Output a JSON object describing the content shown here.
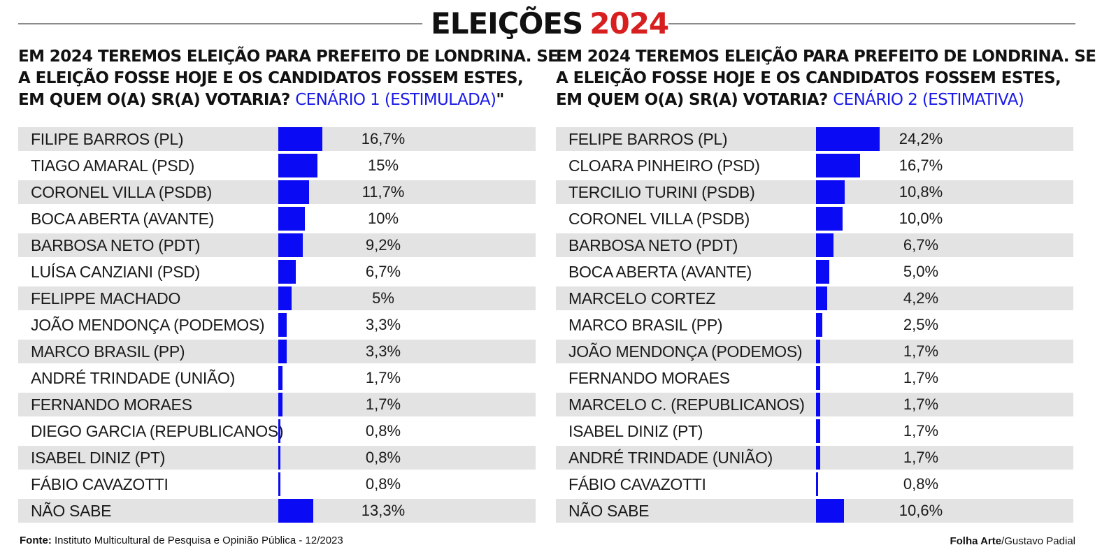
{
  "header": {
    "title_part1": "ELEIÇÕES",
    "title_part2": "2024"
  },
  "colors": {
    "bar": "#0a0af5",
    "accent_red": "#d81f1f",
    "scenario_text": "#1a1ae6",
    "shaded_row": "#e3e3e3"
  },
  "panels": [
    {
      "question_lines": [
        "EM 2024 TEREMOS ELEIÇÃO PARA PREFEITO DE LONDRINA. SE",
        "A ELEIÇÃO FOSSE HOJE E OS CANDIDATOS FOSSEM ESTES,",
        "EM QUEM O(A) SR(A) VOTARIA?"
      ],
      "scenario": "CENÁRIO 1 (ESTIMULADA)",
      "scenario_suffix": "\""
    },
    {
      "question_lines": [
        "EM 2024 TEREMOS ELEIÇÃO PARA PREFEITO DE LONDRINA. SE",
        "A ELEIÇÃO FOSSE HOJE E OS CANDIDATOS FOSSEM ESTES,",
        "EM QUEM O(A) SR(A) VOTARIA?"
      ],
      "scenario": "CENÁRIO 2 (ESTIMATIVA)",
      "scenario_suffix": ""
    }
  ],
  "chart_data": [
    {
      "type": "bar",
      "orientation": "horizontal",
      "title": "EM 2024 TEREMOS ELEIÇÃO PARA PREFEITO DE LONDRINA. SE A ELEIÇÃO FOSSE HOJE E OS CANDIDATOS FOSSEM ESTES, EM QUEM O(A) SR(A) VOTARIA? CENÁRIO 1 (ESTIMULADA)\"",
      "categories": [
        "FILIPE BARROS (PL)",
        "TIAGO AMARAL (PSD)",
        "CORONEL VILLA (PSDB)",
        "BOCA ABERTA (AVANTE)",
        "BARBOSA NETO (PDT)",
        "LUÍSA CANZIANI (PSD)",
        "FELIPPE MACHADO",
        "JOÃO MENDONÇA (PODEMOS)",
        "MARCO BRASIL (PP)",
        "ANDRÉ TRINDADE (UNIÃO)",
        "FERNANDO MORAES",
        "DIEGO GARCIA (REPUBLICANOS)",
        "ISABEL DINIZ (PT)",
        "FÁBIO CAVAZOTTI",
        "NÃO SABE"
      ],
      "values": [
        16.7,
        15,
        11.7,
        10,
        9.2,
        6.7,
        5,
        3.3,
        3.3,
        1.7,
        1.7,
        0.8,
        0.8,
        0.8,
        13.3
      ],
      "labels": [
        "16,7%",
        "15%",
        "11,7%",
        "10%",
        "9,2%",
        "6,7%",
        "5%",
        "3,3%",
        "3,3%",
        "1,7%",
        "1,7%",
        "0,8%",
        "0,8%",
        "0,8%",
        "13,3%"
      ],
      "unit": "%"
    },
    {
      "type": "bar",
      "orientation": "horizontal",
      "title": "EM 2024 TEREMOS ELEIÇÃO PARA PREFEITO DE LONDRINA. SE A ELEIÇÃO FOSSE HOJE E OS CANDIDATOS FOSSEM ESTES, EM QUEM O(A) SR(A) VOTARIA? CENÁRIO 2 (ESTIMATIVA)",
      "categories": [
        "FELIPE BARROS (PL)",
        "CLOARA PINHEIRO (PSD)",
        "TERCILIO TURINI (PSDB)",
        "CORONEL VILLA (PSDB)",
        "BARBOSA NETO (PDT)",
        "BOCA ABERTA (AVANTE)",
        "MARCELO CORTEZ",
        "MARCO BRASIL (PP)",
        "JOÃO MENDONÇA (PODEMOS)",
        "FERNANDO MORAES",
        "MARCELO C. (REPUBLICANOS)",
        "ISABEL DINIZ (PT)",
        "ANDRÉ TRINDADE (UNIÃO)",
        "FÁBIO CAVAZOTTI",
        "NÃO SABE"
      ],
      "values": [
        24.2,
        16.7,
        10.8,
        10.0,
        6.7,
        5.0,
        4.2,
        2.5,
        1.7,
        1.7,
        1.7,
        1.7,
        1.7,
        0.8,
        10.6
      ],
      "labels": [
        "24,2%",
        "16,7%",
        "10,8%",
        "10,0%",
        "6,7%",
        "5,0%",
        "4,2%",
        "2,5%",
        "1,7%",
        "1,7%",
        "1,7%",
        "1,7%",
        "1,7%",
        "0,8%",
        "10,6%"
      ],
      "unit": "%"
    }
  ],
  "footer": {
    "source_label": "Fonte:",
    "source_text": "Instituto Multicultural de Pesquisa e Opinião Pública - 12/2023",
    "credit_bold": "Folha Arte",
    "credit_text": "/Gustavo Padial"
  }
}
